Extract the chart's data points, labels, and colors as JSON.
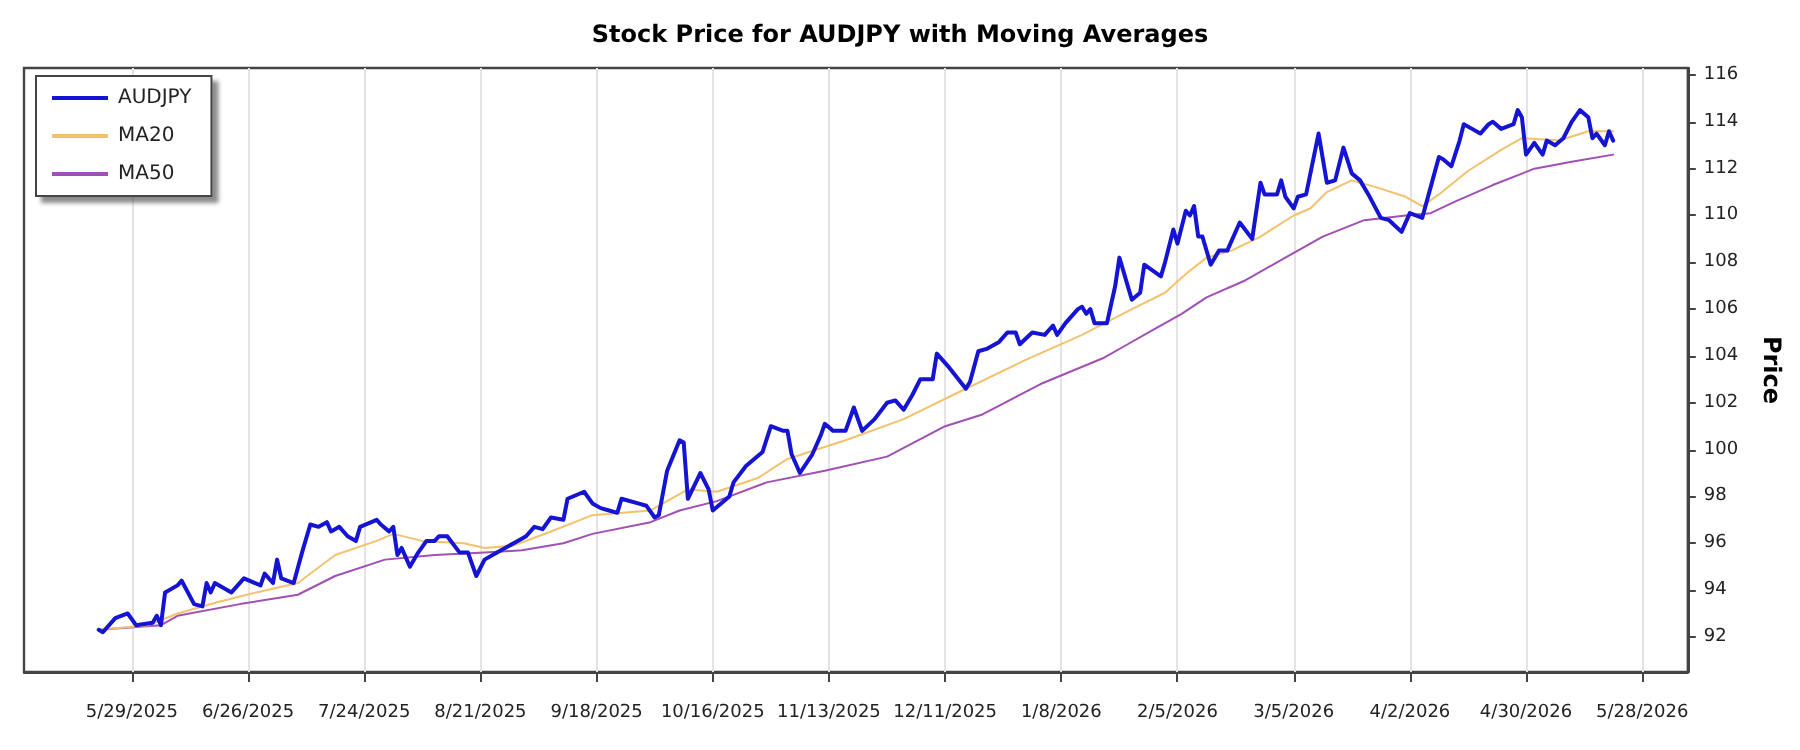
{
  "chart_data": {
    "type": "line",
    "title": "Stock Price for AUDJPY with Moving Averages",
    "ylabel": "Price",
    "xlim": [
      "2025-05-03",
      "2026-06-08"
    ],
    "xticks": [
      {
        "value": "2025-05-29",
        "label": "5/29/2025"
      },
      {
        "value": "2025-06-26",
        "label": "6/26/2025"
      },
      {
        "value": "2025-07-24",
        "label": "7/24/2025"
      },
      {
        "value": "2025-08-21",
        "label": "8/21/2025"
      },
      {
        "value": "2025-09-18",
        "label": "9/18/2025"
      },
      {
        "value": "2025-10-16",
        "label": "10/16/2025"
      },
      {
        "value": "2025-11-13",
        "label": "11/13/2025"
      },
      {
        "value": "2025-12-11",
        "label": "12/11/2025"
      },
      {
        "value": "2026-01-08",
        "label": "1/8/2026"
      },
      {
        "value": "2026-02-05",
        "label": "2/5/2026"
      },
      {
        "value": "2026-03-05",
        "label": "3/5/2026"
      },
      {
        "value": "2026-04-02",
        "label": "4/2/2026"
      },
      {
        "value": "2026-04-30",
        "label": "4/30/2026"
      },
      {
        "value": "2026-05-28",
        "label": "5/28/2026"
      }
    ],
    "ylim": [
      90.5,
      116.3
    ],
    "yticks": [
      92,
      94,
      96,
      98,
      100,
      102,
      104,
      106,
      108,
      110,
      112,
      114,
      116
    ],
    "grid": "x",
    "legend": "top left",
    "marker": "none",
    "series": [
      {
        "name": "AUDJPY",
        "color": "#1414d2",
        "line_style": "solid",
        "x": [
          "2025-05-21",
          "2025-05-22",
          "2025-05-25",
          "2025-05-28",
          "2025-05-30",
          "2025-06-03",
          "2025-06-04",
          "2025-06-05",
          "2025-06-06",
          "2025-06-09",
          "2025-06-10",
          "2025-06-13",
          "2025-06-15",
          "2025-06-16",
          "2025-06-17",
          "2025-06-18",
          "2025-06-22",
          "2025-06-25",
          "2025-06-29",
          "2025-06-30",
          "2025-07-02",
          "2025-07-03",
          "2025-07-04",
          "2025-07-07",
          "2025-07-09",
          "2025-07-11",
          "2025-07-13",
          "2025-07-15",
          "2025-07-16",
          "2025-07-18",
          "2025-07-20",
          "2025-07-22",
          "2025-07-23",
          "2025-07-27",
          "2025-07-28",
          "2025-07-30",
          "2025-07-31",
          "2025-08-01",
          "2025-08-02",
          "2025-08-04",
          "2025-08-06",
          "2025-08-08",
          "2025-08-10",
          "2025-08-11",
          "2025-08-13",
          "2025-08-16",
          "2025-08-18",
          "2025-08-20",
          "2025-08-22",
          "2025-08-25",
          "2025-08-30",
          "2025-09-01",
          "2025-09-03",
          "2025-09-05",
          "2025-09-07",
          "2025-09-10",
          "2025-09-11",
          "2025-09-15",
          "2025-09-17",
          "2025-09-19",
          "2025-09-21",
          "2025-09-23",
          "2025-09-24",
          "2025-09-28",
          "2025-09-30",
          "2025-10-02",
          "2025-10-03",
          "2025-10-05",
          "2025-10-08",
          "2025-10-09",
          "2025-10-10",
          "2025-10-13",
          "2025-10-15",
          "2025-10-16",
          "2025-10-20",
          "2025-10-21",
          "2025-10-24",
          "2025-10-28",
          "2025-10-30",
          "2025-11-02",
          "2025-11-03",
          "2025-11-04",
          "2025-11-06",
          "2025-11-09",
          "2025-11-11",
          "2025-11-12",
          "2025-11-14",
          "2025-11-17",
          "2025-11-19",
          "2025-11-21",
          "2025-11-24",
          "2025-11-27",
          "2025-11-29",
          "2025-12-01",
          "2025-12-03",
          "2025-12-05",
          "2025-12-08",
          "2025-12-09",
          "2025-12-12",
          "2025-12-16",
          "2025-12-17",
          "2025-12-19",
          "2025-12-21",
          "2025-12-24",
          "2025-12-26",
          "2025-12-28",
          "2025-12-29",
          "2026-01-01",
          "2026-01-04",
          "2026-01-06",
          "2026-01-07",
          "2026-01-09",
          "2026-01-12",
          "2026-01-13",
          "2026-01-14",
          "2026-01-15",
          "2026-01-16",
          "2026-01-19",
          "2026-01-21",
          "2026-01-22",
          "2026-01-25",
          "2026-01-27",
          "2026-01-28",
          "2026-02-01",
          "2026-02-02",
          "2026-02-04",
          "2026-02-05",
          "2026-02-07",
          "2026-02-08",
          "2026-02-09",
          "2026-02-10",
          "2026-02-11",
          "2026-02-13",
          "2026-02-15",
          "2026-02-17",
          "2026-02-20",
          "2026-02-23",
          "2026-02-25",
          "2026-02-26",
          "2026-03-01",
          "2026-03-02",
          "2026-03-03",
          "2026-03-05",
          "2026-03-06",
          "2026-03-08",
          "2026-03-11",
          "2026-03-13",
          "2026-03-15",
          "2026-03-17",
          "2026-03-19",
          "2026-03-21",
          "2026-03-23",
          "2026-03-26",
          "2026-03-28",
          "2026-03-31",
          "2026-04-02",
          "2026-04-05",
          "2026-04-07",
          "2026-04-09",
          "2026-04-10",
          "2026-04-12",
          "2026-04-14",
          "2026-04-15",
          "2026-04-17",
          "2026-04-19",
          "2026-04-21",
          "2026-04-22",
          "2026-04-24",
          "2026-04-27",
          "2026-04-28",
          "2026-04-29",
          "2026-04-30",
          "2026-05-02",
          "2026-05-04",
          "2026-05-05",
          "2026-05-07",
          "2026-05-09",
          "2026-05-11",
          "2026-05-13",
          "2026-05-15",
          "2026-05-16",
          "2026-05-17",
          "2026-05-19",
          "2026-05-20",
          "2026-05-21"
        ],
        "values": [
          92.3,
          92.2,
          92.8,
          93.0,
          92.5,
          92.6,
          92.9,
          92.5,
          93.9,
          94.2,
          94.4,
          93.4,
          93.3,
          94.3,
          93.9,
          94.3,
          93.9,
          94.5,
          94.2,
          94.7,
          94.3,
          95.3,
          94.5,
          94.3,
          95.6,
          96.8,
          96.7,
          96.9,
          96.5,
          96.7,
          96.3,
          96.1,
          96.7,
          97.0,
          96.8,
          96.5,
          96.7,
          95.5,
          95.8,
          95.0,
          95.6,
          96.1,
          96.1,
          96.3,
          96.3,
          95.6,
          95.6,
          94.6,
          95.3,
          95.6,
          96.1,
          96.3,
          96.7,
          96.6,
          97.1,
          97.0,
          97.9,
          98.2,
          97.7,
          97.5,
          97.4,
          97.3,
          97.9,
          97.7,
          97.6,
          97.1,
          97.2,
          99.1,
          100.4,
          100.3,
          97.9,
          99.0,
          98.3,
          97.4,
          98.0,
          98.6,
          99.3,
          99.9,
          101.0,
          100.8,
          100.8,
          99.8,
          99.0,
          99.8,
          100.6,
          101.1,
          100.8,
          100.8,
          101.8,
          100.8,
          101.3,
          102.0,
          102.1,
          101.7,
          102.3,
          103.0,
          103.0,
          104.1,
          103.5,
          102.6,
          102.9,
          104.2,
          104.3,
          104.6,
          105.0,
          105.0,
          104.5,
          105.0,
          104.9,
          105.3,
          104.9,
          105.4,
          106.0,
          106.1,
          105.8,
          106.0,
          105.4,
          105.4,
          107.0,
          108.2,
          106.4,
          106.7,
          107.9,
          107.4,
          108.0,
          109.4,
          108.8,
          110.2,
          110.0,
          110.4,
          109.1,
          109.1,
          107.9,
          108.5,
          108.5,
          109.7,
          109.0,
          111.4,
          110.9,
          110.9,
          111.5,
          110.8,
          110.3,
          110.8,
          110.9,
          113.5,
          111.4,
          111.5,
          112.9,
          111.8,
          111.5,
          110.9,
          109.9,
          109.8,
          109.3,
          110.1,
          109.9,
          111.2,
          112.5,
          112.4,
          112.1,
          113.2,
          113.9,
          113.7,
          113.5,
          113.9,
          114.0,
          113.7,
          113.9,
          114.5,
          114.2,
          112.6,
          113.1,
          112.6,
          113.2,
          113.0,
          113.3,
          114.0,
          114.5,
          114.2,
          113.3,
          113.5,
          113.0,
          113.6,
          113.2
        ]
      },
      {
        "name": "MA20",
        "color": "#f2c26e",
        "line_style": "solid",
        "x": [
          "2025-05-21",
          "2025-06-02",
          "2025-06-09",
          "2025-06-19",
          "2025-06-28",
          "2025-07-08",
          "2025-07-17",
          "2025-07-27",
          "2025-07-31",
          "2025-08-07",
          "2025-08-17",
          "2025-08-22",
          "2025-08-29",
          "2025-09-07",
          "2025-09-17",
          "2025-10-01",
          "2025-10-10",
          "2025-10-17",
          "2025-10-27",
          "2025-11-03",
          "2025-11-17",
          "2025-12-01",
          "2025-12-16",
          "2025-12-30",
          "2026-01-13",
          "2026-01-25",
          "2026-02-02",
          "2026-02-07",
          "2026-02-12",
          "2026-02-18",
          "2026-02-25",
          "2026-03-05",
          "2026-03-09",
          "2026-03-13",
          "2026-03-19",
          "2026-03-25",
          "2026-04-01",
          "2026-04-05",
          "2026-04-09",
          "2026-04-16",
          "2026-04-24",
          "2026-04-29",
          "2026-05-08",
          "2026-05-15",
          "2026-05-21"
        ],
        "values": [
          92.3,
          92.5,
          93.0,
          93.5,
          93.9,
          94.3,
          95.5,
          96.1,
          96.4,
          96.1,
          96.0,
          95.8,
          95.9,
          96.5,
          97.2,
          97.4,
          98.3,
          98.2,
          98.8,
          99.6,
          100.4,
          101.3,
          102.6,
          103.8,
          104.9,
          106.0,
          106.7,
          107.5,
          108.2,
          108.5,
          109.1,
          110.0,
          110.3,
          111.0,
          111.5,
          111.2,
          110.8,
          110.4,
          110.9,
          111.9,
          112.8,
          113.3,
          113.2,
          113.6,
          113.6
        ]
      },
      {
        "name": "MA50",
        "color": "#a050b4",
        "line_style": "solid",
        "x": [
          "2025-05-21",
          "2025-06-05",
          "2025-06-09",
          "2025-06-24",
          "2025-07-08",
          "2025-07-17",
          "2025-07-29",
          "2025-08-10",
          "2025-08-22",
          "2025-08-31",
          "2025-09-10",
          "2025-09-17",
          "2025-10-01",
          "2025-10-08",
          "2025-10-17",
          "2025-10-29",
          "2025-11-12",
          "2025-11-27",
          "2025-12-11",
          "2025-12-20",
          "2026-01-03",
          "2026-01-18",
          "2026-01-24",
          "2026-01-30",
          "2026-02-06",
          "2026-02-12",
          "2026-02-21",
          "2026-03-03",
          "2026-03-12",
          "2026-03-22",
          "2026-04-01",
          "2026-04-07",
          "2026-04-13",
          "2026-04-22",
          "2026-05-02",
          "2026-05-11",
          "2026-05-21"
        ],
        "values": [
          92.3,
          92.5,
          92.9,
          93.4,
          93.8,
          94.6,
          95.3,
          95.5,
          95.6,
          95.7,
          96.0,
          96.4,
          96.9,
          97.4,
          97.8,
          98.6,
          99.1,
          99.7,
          101.0,
          101.5,
          102.8,
          103.9,
          104.5,
          105.1,
          105.8,
          106.5,
          107.2,
          108.2,
          109.1,
          109.8,
          110.0,
          110.1,
          110.6,
          111.3,
          112.0,
          112.3,
          112.6
        ]
      }
    ]
  }
}
